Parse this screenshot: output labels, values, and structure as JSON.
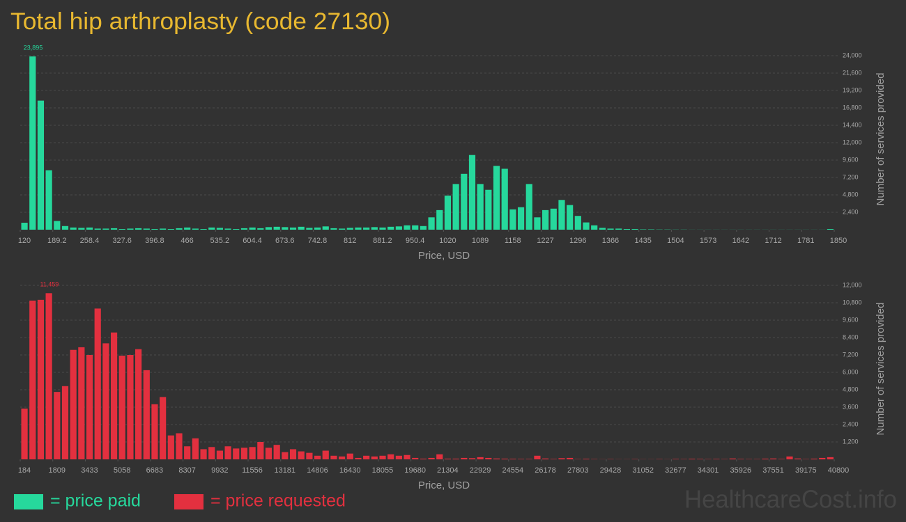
{
  "title": "Total hip arthroplasty (code 27130)",
  "watermark": "HealthcareCost.info",
  "chart_data": [
    {
      "type": "histogram",
      "name": "= price paid",
      "color": "#26d89c",
      "x_label": "Price, USD",
      "y_label": "Number of services provided",
      "xlim": [
        120,
        1850
      ],
      "ylim": [
        0,
        24000
      ],
      "grid": true,
      "xticks": [
        120,
        189.2,
        258.4,
        327.6,
        396.8,
        466,
        535.2,
        604.4,
        673.6,
        742.8,
        812,
        881.2,
        950.4,
        {
          "value": 1019.6,
          "label": "1020"
        },
        {
          "value": 1088.8,
          "label": "1089"
        },
        1158,
        {
          "value": 1227.2,
          "label": "1227"
        },
        {
          "value": 1296.4,
          "label": "1296"
        },
        {
          "value": 1365.6,
          "label": "1366"
        },
        {
          "value": 1434.8,
          "label": "1435"
        },
        1504,
        {
          "value": 1573.2,
          "label": "1573"
        },
        {
          "value": 1642.4,
          "label": "1642"
        },
        {
          "value": 1711.6,
          "label": "1712"
        },
        {
          "value": 1780.8,
          "label": "1781"
        },
        1850
      ],
      "yticks": [
        {
          "value": 2400,
          "label": "2,400"
        },
        {
          "value": 4800,
          "label": "4,800"
        },
        {
          "value": 7200,
          "label": "7,200"
        },
        {
          "value": 9600,
          "label": "9,600"
        },
        {
          "value": 12000,
          "label": "12,000"
        },
        {
          "value": 14400,
          "label": "14,400"
        },
        {
          "value": 16800,
          "label": "16,800"
        },
        {
          "value": 19200,
          "label": "19,200"
        },
        {
          "value": 21600,
          "label": "21,600"
        },
        {
          "value": 24000,
          "label": "24,000"
        }
      ],
      "bins": [
        120,
        137.3,
        154.6,
        171.9,
        189.2,
        206.5,
        223.8,
        241.1,
        258.4,
        275.7,
        293,
        310.3,
        327.6,
        344.9,
        362.2,
        379.5,
        396.8,
        414.1,
        431.4,
        448.7,
        466,
        483.3,
        500.6,
        517.9,
        535.2,
        552.5,
        569.8,
        587.1,
        604.4,
        621.7,
        639,
        656.3,
        673.6,
        690.9,
        708.2,
        725.5,
        742.8,
        760.1,
        777.4,
        794.7,
        812,
        829.3,
        846.6,
        863.9,
        881.2,
        898.5,
        915.8,
        933.1,
        950.4,
        967.7,
        985,
        1002.3,
        1019.6,
        1036.9,
        1054.2,
        1071.5,
        1088.8,
        1106.1,
        1123.4,
        1140.7,
        1158,
        1175.3,
        1192.6,
        1209.9,
        1227.2,
        1244.5,
        1261.8,
        1279.1,
        1296.4,
        1313.7,
        1331,
        1348.3,
        1365.6,
        1382.9,
        1400.2,
        1417.5,
        1434.8,
        1452.1,
        1469.4,
        1486.7,
        1504,
        1521.3,
        1538.6,
        1555.9,
        1573.2,
        1590.5,
        1607.8,
        1625.1,
        1642.4,
        1659.7,
        1677,
        1694.3,
        1711.6,
        1728.9,
        1746.2,
        1763.5,
        1780.8,
        1798.1,
        1815.4,
        1832.7,
        1850
      ],
      "values": [
        960,
        23895,
        17800,
        8200,
        1200,
        500,
        300,
        250,
        300,
        150,
        150,
        200,
        100,
        150,
        200,
        150,
        100,
        150,
        100,
        200,
        300,
        150,
        100,
        300,
        250,
        150,
        100,
        200,
        300,
        200,
        350,
        400,
        350,
        300,
        400,
        250,
        300,
        450,
        200,
        150,
        250,
        300,
        300,
        350,
        300,
        400,
        450,
        600,
        600,
        500,
        1700,
        2700,
        4700,
        6300,
        7700,
        10300,
        6300,
        5500,
        8800,
        8400,
        2800,
        3100,
        6300,
        1700,
        2700,
        2900,
        4100,
        3400,
        1900,
        1000,
        600,
        250,
        150,
        150,
        100,
        100,
        50,
        50,
        30,
        30,
        20,
        20,
        10,
        10,
        10,
        10,
        10,
        10,
        10,
        10,
        10,
        10,
        10,
        10,
        10,
        10,
        10,
        10,
        10,
        100
      ],
      "value_labels": [
        null,
        "23,895",
        null,
        null,
        null,
        null,
        null,
        null,
        null,
        null,
        null,
        null,
        null,
        null,
        null,
        null,
        null,
        null,
        null,
        null,
        null,
        null,
        null,
        null,
        null,
        null,
        null,
        null,
        null,
        null,
        null,
        null,
        null,
        null,
        null,
        null,
        null,
        null,
        null,
        null,
        null,
        null,
        null,
        null,
        null,
        null,
        null,
        null,
        null,
        null,
        null,
        null,
        null,
        null,
        null,
        null,
        null,
        null,
        null,
        null,
        null,
        null,
        null,
        null,
        null,
        null,
        null,
        null,
        null,
        null,
        null,
        null,
        null,
        null,
        null,
        null,
        null,
        null,
        null,
        null,
        null,
        null,
        null,
        null,
        null,
        null,
        null,
        null,
        null,
        null,
        null,
        null,
        null,
        null,
        null,
        null,
        null,
        null,
        null,
        null
      ]
    },
    {
      "type": "histogram",
      "name": "= price requested",
      "color": "#e3303f",
      "x_label": "Price, USD",
      "y_label": "Number of services provided",
      "xlim": [
        184,
        40800
      ],
      "ylim": [
        0,
        12000
      ],
      "grid": true,
      "xticks": [
        184,
        1809,
        3433,
        5058,
        6683,
        8307,
        9932,
        11556,
        13181,
        14806,
        16430,
        18055,
        19680,
        21304,
        22929,
        24554,
        26178,
        27803,
        29428,
        31052,
        32677,
        34301,
        35926,
        37551,
        39175,
        40800
      ],
      "yticks": [
        {
          "value": 1200,
          "label": "1,200"
        },
        {
          "value": 2400,
          "label": "2,400"
        },
        {
          "value": 3600,
          "label": "3,600"
        },
        {
          "value": 4800,
          "label": "4,800"
        },
        {
          "value": 6000,
          "label": "6,000"
        },
        {
          "value": 7200,
          "label": "7,200"
        },
        {
          "value": 8400,
          "label": "8,400"
        },
        {
          "value": 9600,
          "label": "9,600"
        },
        {
          "value": 10800,
          "label": "10,800"
        },
        {
          "value": 12000,
          "label": "12,000"
        }
      ],
      "bins": [
        184,
        590,
        996,
        1402,
        1809,
        2215,
        2621,
        3027,
        3433,
        3839,
        4246,
        4652,
        5058,
        5464,
        5870,
        6276,
        6683,
        7089,
        7495,
        7901,
        8307,
        8713,
        9120,
        9526,
        9932,
        10338,
        10744,
        11150,
        11556,
        11963,
        12369,
        12775,
        13181,
        13587,
        13993,
        14400,
        14806,
        15212,
        15618,
        16024,
        16430,
        16837,
        17243,
        17649,
        18055,
        18461,
        18867,
        19274,
        19680,
        20086,
        20492,
        20898,
        21304,
        21710,
        22117,
        22523,
        22929,
        23335,
        23741,
        24147,
        24554,
        24960,
        25366,
        25772,
        26178,
        26584,
        26991,
        27397,
        27803,
        28209,
        28615,
        29021,
        29428,
        29834,
        30240,
        30646,
        31052,
        31458,
        31864,
        32271,
        32677,
        33083,
        33489,
        33895,
        34301,
        34708,
        35114,
        35520,
        35926,
        36332,
        36738,
        37145,
        37551,
        37957,
        38363,
        38769,
        39175,
        39582,
        39988,
        40394,
        40800
      ],
      "values": [
        3500,
        10950,
        11000,
        11459,
        4650,
        5050,
        7550,
        7730,
        7200,
        10400,
        8000,
        8750,
        7150,
        7200,
        7600,
        6150,
        3800,
        4300,
        1650,
        1800,
        900,
        1450,
        700,
        850,
        600,
        900,
        750,
        800,
        850,
        1200,
        800,
        1000,
        500,
        700,
        550,
        450,
        250,
        600,
        250,
        200,
        400,
        100,
        250,
        200,
        250,
        350,
        250,
        300,
        100,
        50,
        100,
        350,
        50,
        50,
        100,
        80,
        150,
        100,
        60,
        50,
        40,
        30,
        30,
        250,
        60,
        30,
        80,
        100,
        20,
        40,
        20,
        10,
        20,
        10,
        10,
        20,
        10,
        10,
        20,
        10,
        30,
        20,
        40,
        30,
        20,
        30,
        20,
        60,
        30,
        20,
        20,
        50,
        60,
        30,
        200,
        60,
        20,
        50,
        100,
        150
      ],
      "value_labels": [
        null,
        null,
        null,
        "11,459",
        null,
        null,
        null,
        null,
        null,
        null,
        null,
        null,
        null,
        null,
        null,
        null,
        null,
        null,
        null,
        null,
        null,
        null,
        null,
        null,
        null,
        null,
        null,
        null,
        null,
        null,
        null,
        null,
        null,
        null,
        null,
        null,
        null,
        null,
        null,
        null,
        null,
        null,
        null,
        null,
        null,
        null,
        null,
        null,
        null,
        null,
        null,
        null,
        null,
        null,
        null,
        null,
        null,
        null,
        null,
        null,
        null,
        null,
        null,
        null,
        null,
        null,
        null,
        null,
        null,
        null,
        null,
        null,
        null,
        null,
        null,
        null,
        null,
        null,
        null,
        null,
        null,
        null,
        null,
        null,
        null,
        null,
        null,
        null,
        null,
        null,
        null,
        null,
        null,
        null,
        null,
        null,
        null,
        null,
        null,
        null
      ]
    }
  ]
}
